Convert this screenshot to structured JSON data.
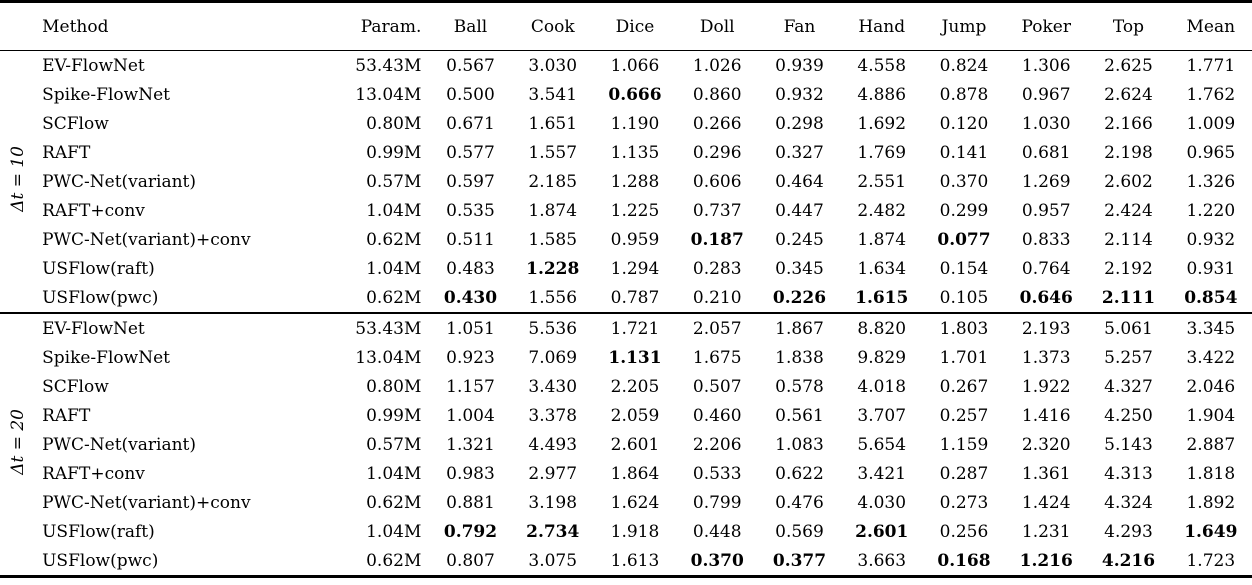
{
  "table": {
    "columns": [
      "Method",
      "Param.",
      "Ball",
      "Cook",
      "Dice",
      "Doll",
      "Fan",
      "Hand",
      "Jump",
      "Poker",
      "Top",
      "Mean"
    ],
    "text_color": "#000000",
    "background_color": "#ffffff",
    "groups": [
      {
        "label": "Δt = 10",
        "rows": [
          {
            "method": "EV-FlowNet",
            "param": "53.43M",
            "values": [
              "0.567",
              "3.030",
              "1.066",
              "1.026",
              "0.939",
              "4.558",
              "0.824",
              "1.306",
              "2.625",
              "1.771"
            ],
            "bold": []
          },
          {
            "method": "Spike-FlowNet",
            "param": "13.04M",
            "values": [
              "0.500",
              "3.541",
              "0.666",
              "0.860",
              "0.932",
              "4.886",
              "0.878",
              "0.967",
              "2.624",
              "1.762"
            ],
            "bold": [
              2
            ]
          },
          {
            "method": "SCFlow",
            "param": "0.80M",
            "values": [
              "0.671",
              "1.651",
              "1.190",
              "0.266",
              "0.298",
              "1.692",
              "0.120",
              "1.030",
              "2.166",
              "1.009"
            ],
            "bold": []
          },
          {
            "method": "RAFT",
            "param": "0.99M",
            "values": [
              "0.577",
              "1.557",
              "1.135",
              "0.296",
              "0.327",
              "1.769",
              "0.141",
              "0.681",
              "2.198",
              "0.965"
            ],
            "bold": []
          },
          {
            "method": "PWC-Net(variant)",
            "param": "0.57M",
            "values": [
              "0.597",
              "2.185",
              "1.288",
              "0.606",
              "0.464",
              "2.551",
              "0.370",
              "1.269",
              "2.602",
              "1.326"
            ],
            "bold": []
          },
          {
            "method": "RAFT+conv",
            "param": "1.04M",
            "values": [
              "0.535",
              "1.874",
              "1.225",
              "0.737",
              "0.447",
              "2.482",
              "0.299",
              "0.957",
              "2.424",
              "1.220"
            ],
            "bold": []
          },
          {
            "method": "PWC-Net(variant)+conv",
            "param": "0.62M",
            "values": [
              "0.511",
              "1.585",
              "0.959",
              "0.187",
              "0.245",
              "1.874",
              "0.077",
              "0.833",
              "2.114",
              "0.932"
            ],
            "bold": [
              3,
              6
            ]
          },
          {
            "method": "USFlow(raft)",
            "param": "1.04M",
            "values": [
              "0.483",
              "1.228",
              "1.294",
              "0.283",
              "0.345",
              "1.634",
              "0.154",
              "0.764",
              "2.192",
              "0.931"
            ],
            "bold": [
              1
            ]
          },
          {
            "method": "USFlow(pwc)",
            "param": "0.62M",
            "values": [
              "0.430",
              "1.556",
              "0.787",
              "0.210",
              "0.226",
              "1.615",
              "0.105",
              "0.646",
              "2.111",
              "0.854"
            ],
            "bold": [
              0,
              4,
              5,
              7,
              8,
              9
            ]
          }
        ]
      },
      {
        "label": "Δt = 20",
        "rows": [
          {
            "method": "EV-FlowNet",
            "param": "53.43M",
            "values": [
              "1.051",
              "5.536",
              "1.721",
              "2.057",
              "1.867",
              "8.820",
              "1.803",
              "2.193",
              "5.061",
              "3.345"
            ],
            "bold": []
          },
          {
            "method": "Spike-FlowNet",
            "param": "13.04M",
            "values": [
              "0.923",
              "7.069",
              "1.131",
              "1.675",
              "1.838",
              "9.829",
              "1.701",
              "1.373",
              "5.257",
              "3.422"
            ],
            "bold": [
              2
            ]
          },
          {
            "method": "SCFlow",
            "param": "0.80M",
            "values": [
              "1.157",
              "3.430",
              "2.205",
              "0.507",
              "0.578",
              "4.018",
              "0.267",
              "1.922",
              "4.327",
              "2.046"
            ],
            "bold": []
          },
          {
            "method": "RAFT",
            "param": "0.99M",
            "values": [
              "1.004",
              "3.378",
              "2.059",
              "0.460",
              "0.561",
              "3.707",
              "0.257",
              "1.416",
              "4.250",
              "1.904"
            ],
            "bold": []
          },
          {
            "method": "PWC-Net(variant)",
            "param": "0.57M",
            "values": [
              "1.321",
              "4.493",
              "2.601",
              "2.206",
              "1.083",
              "5.654",
              "1.159",
              "2.320",
              "5.143",
              "2.887"
            ],
            "bold": []
          },
          {
            "method": "RAFT+conv",
            "param": "1.04M",
            "values": [
              "0.983",
              "2.977",
              "1.864",
              "0.533",
              "0.622",
              "3.421",
              "0.287",
              "1.361",
              "4.313",
              "1.818"
            ],
            "bold": []
          },
          {
            "method": "PWC-Net(variant)+conv",
            "param": "0.62M",
            "values": [
              "0.881",
              "3.198",
              "1.624",
              "0.799",
              "0.476",
              "4.030",
              "0.273",
              "1.424",
              "4.324",
              "1.892"
            ],
            "bold": []
          },
          {
            "method": "USFlow(raft)",
            "param": "1.04M",
            "values": [
              "0.792",
              "2.734",
              "1.918",
              "0.448",
              "0.569",
              "2.601",
              "0.256",
              "1.231",
              "4.293",
              "1.649"
            ],
            "bold": [
              0,
              1,
              5,
              9
            ]
          },
          {
            "method": "USFlow(pwc)",
            "param": "0.62M",
            "values": [
              "0.807",
              "3.075",
              "1.613",
              "0.370",
              "0.377",
              "3.663",
              "0.168",
              "1.216",
              "4.216",
              "1.723"
            ],
            "bold": [
              3,
              4,
              6,
              7,
              8
            ]
          }
        ]
      }
    ]
  }
}
